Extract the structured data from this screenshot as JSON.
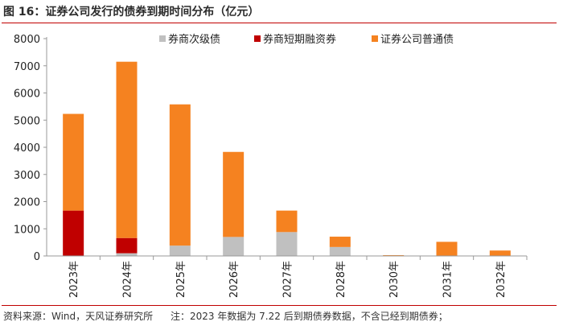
{
  "title": "图 16：证券公司发行的债券到期时间分布（亿元）",
  "footer": {
    "source": "资料来源：Wind，天风证券研究所",
    "note": "注：2023 年数据为 7.22 后到期债券数据，不含已经到期债券；"
  },
  "colors": {
    "series": [
      "#c0c0c0",
      "#c00000",
      "#f58220"
    ],
    "axis": "#999999",
    "rule": "#c00000"
  },
  "chart_data": {
    "type": "bar",
    "stacked": true,
    "categories": [
      "2023年",
      "2024年",
      "2025年",
      "2026年",
      "2027年",
      "2028年",
      "2030年",
      "2031年",
      "2032年"
    ],
    "series": [
      {
        "name": "券商次级债",
        "values": [
          0,
          100,
          380,
          700,
          880,
          330,
          0,
          0,
          0
        ]
      },
      {
        "name": "券商短期融资券",
        "values": [
          1670,
          560,
          0,
          0,
          0,
          0,
          0,
          0,
          0
        ]
      },
      {
        "name": "证券公司普通债",
        "values": [
          3560,
          6490,
          5200,
          3130,
          790,
          380,
          30,
          520,
          200
        ]
      }
    ],
    "ylim": [
      0,
      8000
    ],
    "yticks": [
      0,
      1000,
      2000,
      3000,
      4000,
      5000,
      6000,
      7000,
      8000
    ],
    "grid": false,
    "legend": "top"
  }
}
